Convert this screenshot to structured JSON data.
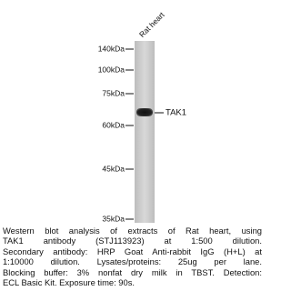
{
  "lane_label": "Rat heart",
  "markers": [
    "140kDa",
    "100kDa",
    "75kDa",
    "60kDa",
    "45kDa",
    "35kDa"
  ],
  "band_label": "TAK1",
  "caption_lines": [
    "Western blot analysis of extracts of Rat heart, using",
    "TAK1 antibody (STJ113923) at 1:500 dilution.",
    "Secondary antibody: HRP Goat Anti-rabbit IgG (H+L) at",
    "1:10000 dilution. Lysates/proteins: 25ug per lane.",
    "Blocking buffer: 3% nonfat dry milk in TBST. Detection:",
    "ECL Basic Kit. Exposure time: 90s."
  ]
}
